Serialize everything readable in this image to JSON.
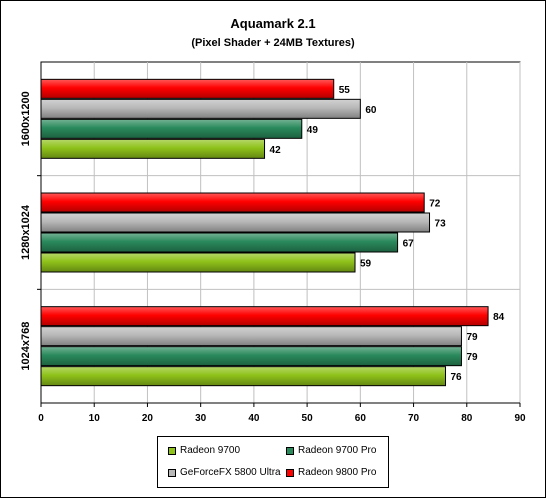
{
  "chart_data": {
    "type": "bar",
    "orientation": "horizontal",
    "title": "Aquamark 2.1",
    "subtitle": "(Pixel Shader + 24MB Textures)",
    "categories": [
      "1600x1200",
      "1280x1024",
      "1024x768"
    ],
    "series": [
      {
        "name": "Radeon 9700",
        "color": "#8fc21a",
        "values": [
          42,
          59,
          76
        ]
      },
      {
        "name": "Radeon 9700 Pro",
        "color": "#2a8a5c",
        "values": [
          49,
          67,
          79
        ]
      },
      {
        "name": "GeForceFX 5800 Ultra",
        "color": "#b8b8b8",
        "values": [
          60,
          73,
          79
        ]
      },
      {
        "name": "Radeon 9800 Pro",
        "color": "#ff0000",
        "values": [
          55,
          72,
          84
        ]
      }
    ],
    "xlim": [
      0,
      90
    ],
    "xticks": [
      0,
      10,
      20,
      30,
      40,
      50,
      60,
      70,
      80,
      90
    ],
    "grid": "vertical",
    "legend_position": "bottom",
    "xlabel": "",
    "ylabel": ""
  }
}
